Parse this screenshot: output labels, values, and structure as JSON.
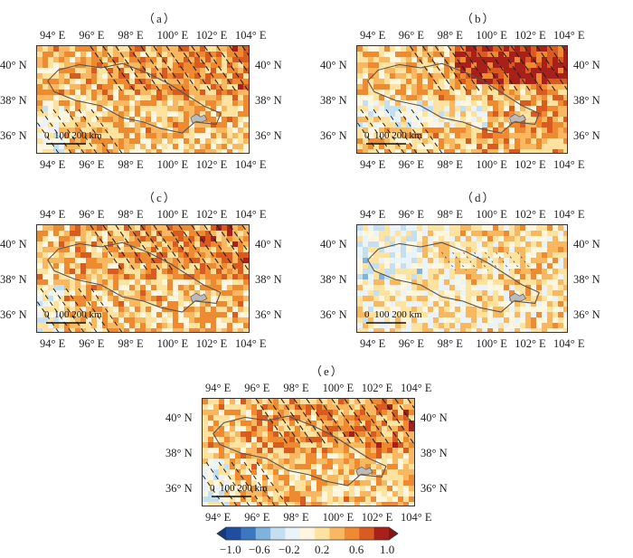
{
  "panels": [
    {
      "label": "（a）",
      "style": "strong",
      "scale_text": "0  100 200 km"
    },
    {
      "label": "（b）",
      "style": "strong-east",
      "scale_text": "0  100 200 km"
    },
    {
      "label": "（c）",
      "style": "strong",
      "scale_text": "0  100 200 km"
    },
    {
      "label": "（d）",
      "style": "weak",
      "scale_text": "0  100 200 km"
    },
    {
      "label": "（e）",
      "style": "strong",
      "scale_text": "0  100 200 km"
    }
  ],
  "lon_ticks": [
    "94° E",
    "96° E",
    "98° E",
    "100° E",
    "102° E",
    "104° E"
  ],
  "lat_ticks": [
    "40° N",
    "38° N",
    "36° N"
  ],
  "colorbar": {
    "ticks": [
      "−1.0",
      "−0.6",
      "−0.2",
      "0.2",
      "0.6",
      "1.0"
    ],
    "range": [
      -1.0,
      1.0
    ],
    "colors": [
      "#1f4e9e",
      "#3b78c0",
      "#7fb2dc",
      "#c4dff0",
      "#eaf3f9",
      "#fff6df",
      "#fde2a0",
      "#f9b860",
      "#ef8a30",
      "#d95b1f",
      "#a8201a"
    ]
  }
}
